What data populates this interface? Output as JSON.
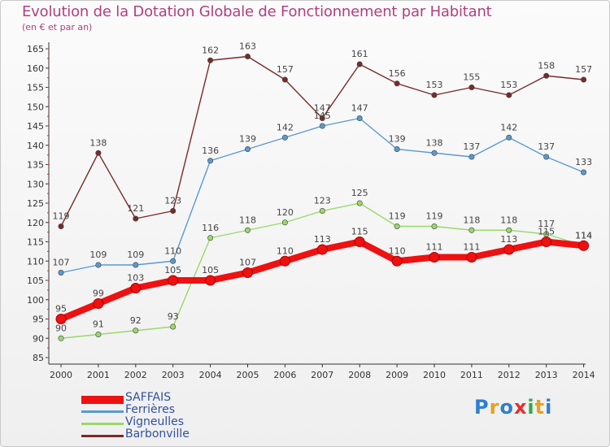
{
  "chart_data": {
    "type": "line",
    "title": "Evolution de la Dotation Globale de Fonctionnement par Habitant",
    "subtitle": "(en € et par an)",
    "xlabel": "",
    "ylabel": "",
    "x": [
      "2000",
      "2001",
      "2002",
      "2003",
      "2004",
      "2005",
      "2006",
      "2007",
      "2008",
      "2009",
      "2010",
      "2011",
      "2012",
      "2013",
      "2014"
    ],
    "ylim": [
      85,
      165
    ],
    "yticks": [
      85,
      90,
      95,
      100,
      105,
      110,
      115,
      120,
      125,
      130,
      135,
      140,
      145,
      150,
      155,
      160,
      165
    ],
    "grid": false,
    "legend_position": "bottom-left",
    "series": [
      {
        "name": "Barbonville",
        "color": "#7a2a2a",
        "values": [
          119,
          138,
          121,
          123,
          162,
          163,
          157,
          147,
          161,
          156,
          153,
          155,
          153,
          158,
          157
        ]
      },
      {
        "name": "Ferrières",
        "color": "#5a9ad0",
        "values": [
          107,
          109,
          109,
          110,
          136,
          139,
          142,
          145,
          147,
          139,
          138,
          137,
          142,
          137,
          133
        ]
      },
      {
        "name": "Vigneulles",
        "color": "#9ad86a",
        "values": [
          90,
          91,
          92,
          93,
          116,
          118,
          120,
          123,
          125,
          119,
          119,
          118,
          118,
          117,
          114
        ]
      },
      {
        "name": "SAFFAIS",
        "color": "#ee1111",
        "values": [
          95,
          99,
          103,
          105,
          105,
          107,
          110,
          113,
          115,
          110,
          111,
          111,
          113,
          115,
          114
        ]
      }
    ],
    "legend_order": [
      "SAFFAIS",
      "Ferrières",
      "Vigneulles",
      "Barbonville"
    ]
  },
  "logo": {
    "parts": [
      "P",
      "r",
      "o",
      "x",
      "i",
      "t",
      "i"
    ]
  }
}
